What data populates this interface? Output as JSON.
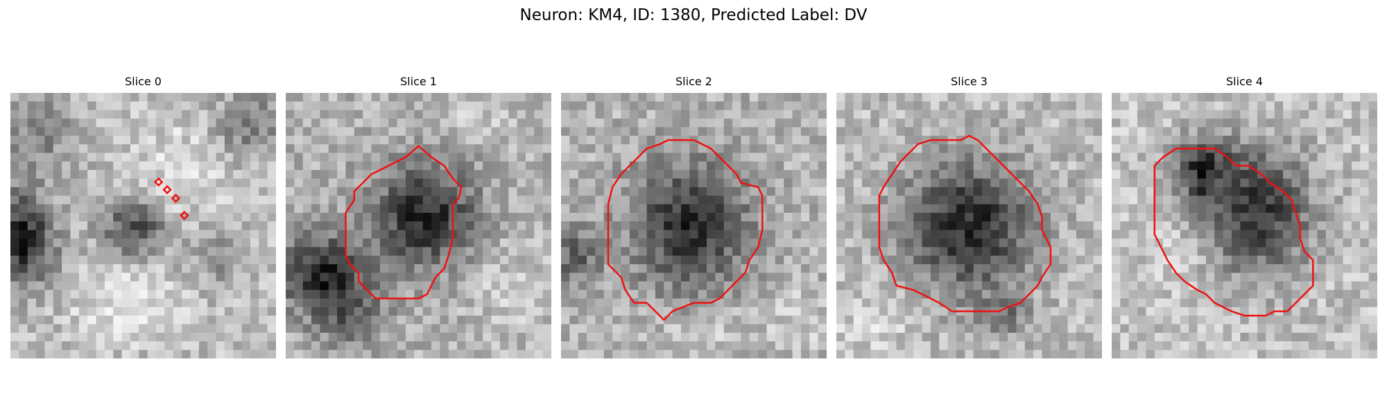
{
  "figure": {
    "title": "Neuron: KM4, ID: 1380, Predicted Label: DV"
  },
  "colors": {
    "contour": "#ee1111",
    "background": "#ffffff"
  },
  "panels": [
    {
      "title": "Slice 0"
    },
    {
      "title": "Slice 1"
    },
    {
      "title": "Slice 2"
    },
    {
      "title": "Slice 3"
    },
    {
      "title": "Slice 4"
    }
  ]
}
